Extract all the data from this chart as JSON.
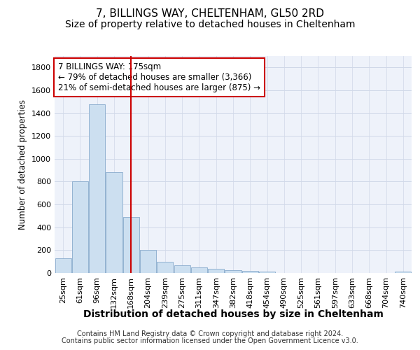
{
  "title1": "7, BILLINGS WAY, CHELTENHAM, GL50 2RD",
  "title2": "Size of property relative to detached houses in Cheltenham",
  "xlabel": "Distribution of detached houses by size in Cheltenham",
  "ylabel": "Number of detached properties",
  "categories": [
    "25sqm",
    "61sqm",
    "96sqm",
    "132sqm",
    "168sqm",
    "204sqm",
    "239sqm",
    "275sqm",
    "311sqm",
    "347sqm",
    "382sqm",
    "418sqm",
    "454sqm",
    "490sqm",
    "525sqm",
    "561sqm",
    "597sqm",
    "633sqm",
    "668sqm",
    "704sqm",
    "740sqm"
  ],
  "values": [
    130,
    800,
    1480,
    880,
    490,
    205,
    100,
    65,
    48,
    38,
    25,
    18,
    12,
    0,
    0,
    0,
    0,
    0,
    0,
    0,
    15
  ],
  "bar_color": "#ccdff0",
  "bar_edge_color": "#88aacc",
  "vline_x": 4,
  "vline_color": "#cc0000",
  "ylim": [
    0,
    1900
  ],
  "yticks": [
    0,
    200,
    400,
    600,
    800,
    1000,
    1200,
    1400,
    1600,
    1800
  ],
  "annotation_title": "7 BILLINGS WAY: 175sqm",
  "annotation_line1": "← 79% of detached houses are smaller (3,366)",
  "annotation_line2": "21% of semi-detached houses are larger (875) →",
  "annotation_box_color": "#ffffff",
  "annotation_box_edge": "#cc0000",
  "footer1": "Contains HM Land Registry data © Crown copyright and database right 2024.",
  "footer2": "Contains public sector information licensed under the Open Government Licence v3.0.",
  "grid_color": "#d0d8e8",
  "background_color": "#eef2fa",
  "fig_background": "#ffffff",
  "title1_fontsize": 11,
  "title2_fontsize": 10,
  "xlabel_fontsize": 10,
  "ylabel_fontsize": 8.5,
  "tick_fontsize": 8,
  "annotation_fontsize": 8.5,
  "footer_fontsize": 7
}
